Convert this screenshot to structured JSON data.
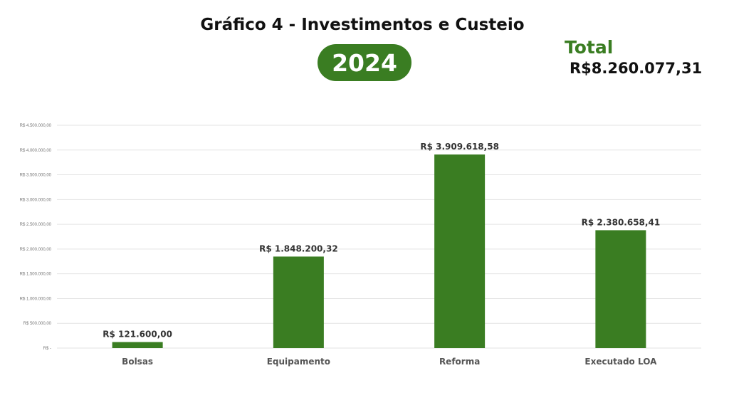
{
  "header": {
    "title": "Gráfico 4 - Investimentos e Custeio",
    "year": "2024",
    "total_label": "Total",
    "total_value": "R$8.260.077,31"
  },
  "colors": {
    "bar": "#3a7d22",
    "grid": "#e3e3e3",
    "accent": "#3a7d22"
  },
  "chart_data": {
    "type": "bar",
    "title": "",
    "xlabel": "",
    "ylabel": "",
    "categories": [
      "Bolsas",
      "Equipamento",
      "Reforma",
      "Executado LOA"
    ],
    "values": [
      121600.0,
      1848200.32,
      3909618.58,
      2380658.41
    ],
    "data_labels": [
      "R$ 121.600,00",
      "R$ 1.848.200,32",
      "R$ 3.909.618,58",
      "R$ 2.380.658,41"
    ],
    "ylim": [
      0,
      4500000
    ],
    "yticks": [
      0,
      500000,
      1000000,
      1500000,
      2000000,
      2500000,
      3000000,
      3500000,
      4000000,
      4500000
    ],
    "ytick_labels": [
      "R$ -",
      "R$ 500.000,00",
      "R$ 1.000.000,00",
      "R$ 1.500.000,00",
      "R$ 2.000.000,00",
      "R$ 2.500.000,00",
      "R$ 3.000.000,00",
      "R$ 3.500.000,00",
      "R$ 4.000.000,00",
      "R$ 4.500.000,00"
    ],
    "grid": true,
    "legend": false
  }
}
